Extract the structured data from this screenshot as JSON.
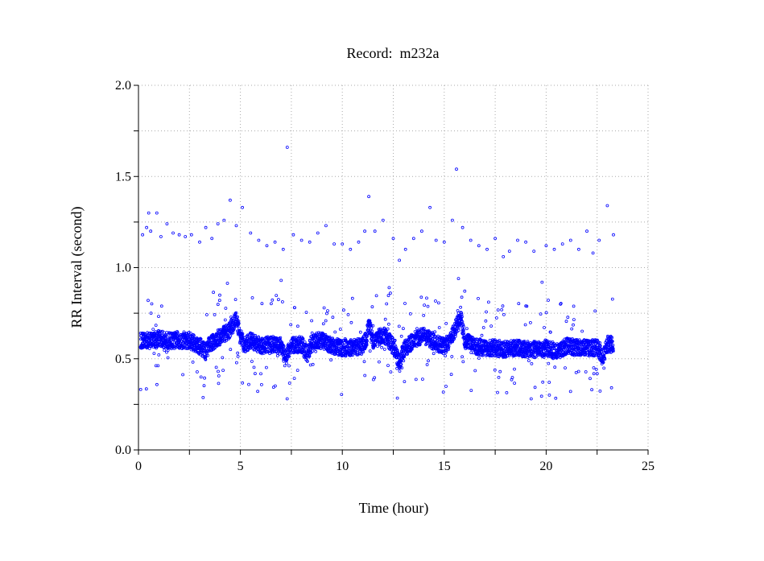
{
  "chart_data": {
    "type": "scatter",
    "title": "Record:  m232a",
    "xlabel": "Time (hour)",
    "ylabel": "RR Interval (second)",
    "xlim": [
      0,
      25
    ],
    "ylim": [
      0.0,
      2.0
    ],
    "xticks": [
      "0",
      "5",
      "10",
      "15",
      "20",
      "25"
    ],
    "yticks": [
      "0.0",
      "0.5",
      "1.0",
      "1.5",
      "2.0"
    ],
    "grid": true,
    "marker": "open-circle",
    "color": "#0000ff",
    "main_trend": [
      [
        0.1,
        0.6
      ],
      [
        0.5,
        0.6
      ],
      [
        1.0,
        0.61
      ],
      [
        1.5,
        0.6
      ],
      [
        2.0,
        0.6
      ],
      [
        2.5,
        0.6
      ],
      [
        3.0,
        0.57
      ],
      [
        3.3,
        0.54
      ],
      [
        3.5,
        0.58
      ],
      [
        4.0,
        0.62
      ],
      [
        4.5,
        0.66
      ],
      [
        4.8,
        0.72
      ],
      [
        5.0,
        0.62
      ],
      [
        5.2,
        0.57
      ],
      [
        5.5,
        0.6
      ],
      [
        6.0,
        0.57
      ],
      [
        6.5,
        0.58
      ],
      [
        7.0,
        0.57
      ],
      [
        7.2,
        0.5
      ],
      [
        7.5,
        0.57
      ],
      [
        8.0,
        0.58
      ],
      [
        8.3,
        0.52
      ],
      [
        8.5,
        0.6
      ],
      [
        9.0,
        0.6
      ],
      [
        9.5,
        0.57
      ],
      [
        10.0,
        0.56
      ],
      [
        10.5,
        0.56
      ],
      [
        11.0,
        0.57
      ],
      [
        11.2,
        0.62
      ],
      [
        11.3,
        0.7
      ],
      [
        11.5,
        0.6
      ],
      [
        12.0,
        0.63
      ],
      [
        12.3,
        0.6
      ],
      [
        12.6,
        0.55
      ],
      [
        12.8,
        0.47
      ],
      [
        13.0,
        0.55
      ],
      [
        13.5,
        0.6
      ],
      [
        14.0,
        0.63
      ],
      [
        14.5,
        0.59
      ],
      [
        15.0,
        0.57
      ],
      [
        15.3,
        0.6
      ],
      [
        15.6,
        0.68
      ],
      [
        15.8,
        0.74
      ],
      [
        16.0,
        0.6
      ],
      [
        16.5,
        0.57
      ],
      [
        17.0,
        0.56
      ],
      [
        17.5,
        0.56
      ],
      [
        18.0,
        0.55
      ],
      [
        18.5,
        0.56
      ],
      [
        19.0,
        0.55
      ],
      [
        19.5,
        0.55
      ],
      [
        20.0,
        0.56
      ],
      [
        20.5,
        0.54
      ],
      [
        21.0,
        0.57
      ],
      [
        21.5,
        0.56
      ],
      [
        22.0,
        0.56
      ],
      [
        22.5,
        0.56
      ],
      [
        22.8,
        0.5
      ],
      [
        23.0,
        0.58
      ],
      [
        23.3,
        0.58
      ]
    ],
    "outliers": [
      [
        0.2,
        1.18
      ],
      [
        0.4,
        1.22
      ],
      [
        0.5,
        1.3
      ],
      [
        0.6,
        1.2
      ],
      [
        0.9,
        1.3
      ],
      [
        1.1,
        1.17
      ],
      [
        1.4,
        1.24
      ],
      [
        1.7,
        1.19
      ],
      [
        2.0,
        1.18
      ],
      [
        2.3,
        1.17
      ],
      [
        2.6,
        1.18
      ],
      [
        3.0,
        1.14
      ],
      [
        3.3,
        1.22
      ],
      [
        3.6,
        1.16
      ],
      [
        3.9,
        1.24
      ],
      [
        4.2,
        1.26
      ],
      [
        4.5,
        1.37
      ],
      [
        4.8,
        1.23
      ],
      [
        5.1,
        1.33
      ],
      [
        5.5,
        1.19
      ],
      [
        5.9,
        1.15
      ],
      [
        6.3,
        1.12
      ],
      [
        6.7,
        1.14
      ],
      [
        7.0,
        0.93
      ],
      [
        7.1,
        1.1
      ],
      [
        7.3,
        1.66
      ],
      [
        7.6,
        1.18
      ],
      [
        8.0,
        1.15
      ],
      [
        8.4,
        1.14
      ],
      [
        8.8,
        1.19
      ],
      [
        9.2,
        1.23
      ],
      [
        9.6,
        1.13
      ],
      [
        10.0,
        1.13
      ],
      [
        10.4,
        1.1
      ],
      [
        10.8,
        1.14
      ],
      [
        11.1,
        1.2
      ],
      [
        11.3,
        1.39
      ],
      [
        11.6,
        1.2
      ],
      [
        12.0,
        1.26
      ],
      [
        12.3,
        0.89
      ],
      [
        12.5,
        1.16
      ],
      [
        12.8,
        1.04
      ],
      [
        13.1,
        1.1
      ],
      [
        13.5,
        1.16
      ],
      [
        13.9,
        1.2
      ],
      [
        14.3,
        1.33
      ],
      [
        14.6,
        1.15
      ],
      [
        15.0,
        1.14
      ],
      [
        15.4,
        1.26
      ],
      [
        15.6,
        1.54
      ],
      [
        15.7,
        0.94
      ],
      [
        15.9,
        1.22
      ],
      [
        16.3,
        1.15
      ],
      [
        16.7,
        1.12
      ],
      [
        17.1,
        1.1
      ],
      [
        17.5,
        1.16
      ],
      [
        17.9,
        1.06
      ],
      [
        18.2,
        1.09
      ],
      [
        18.6,
        1.15
      ],
      [
        19.0,
        1.14
      ],
      [
        19.4,
        1.09
      ],
      [
        19.8,
        0.92
      ],
      [
        20.0,
        1.12
      ],
      [
        20.4,
        1.1
      ],
      [
        20.8,
        1.13
      ],
      [
        21.2,
        1.15
      ],
      [
        21.6,
        1.1
      ],
      [
        22.0,
        1.2
      ],
      [
        22.3,
        1.08
      ],
      [
        22.6,
        1.15
      ],
      [
        23.0,
        1.34
      ],
      [
        23.3,
        1.18
      ]
    ]
  }
}
